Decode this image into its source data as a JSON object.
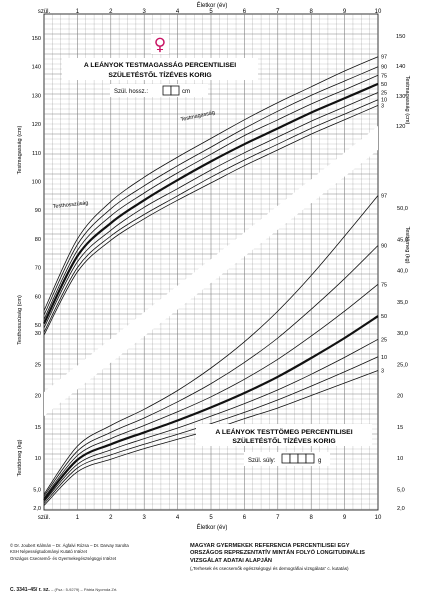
{
  "title_height": "A LEÁNYOK TESTMAGASSÁG PERCENTILISEI",
  "subtitle_height": "SZÜLETÉSTŐL TÍZÉVES KORIG",
  "birth_length_label": "Szül. hossz.:",
  "birth_length_unit": "cm",
  "title_weight": "A LEÁNYOK TESTTÖMEG PERCENTILISEI",
  "subtitle_weight": "SZÜLETÉSTŐL TÍZÉVES KORIG",
  "birth_weight_label": "Szül. súly:",
  "birth_weight_unit": "g",
  "female_symbol": "♀",
  "colors": {
    "symbol": "#c81464",
    "grid": "#777777",
    "curve": "#111111"
  },
  "chart_data": {
    "type": "line",
    "x_axis": {
      "label": "Életkor (év)",
      "range": [
        0,
        10
      ],
      "ticks": [
        "szül.",
        "1",
        "2",
        "3",
        "4",
        "5",
        "6",
        "7",
        "8",
        "9",
        "10"
      ]
    },
    "height_panel": {
      "ylabel_upper": "Testmagasság (cm)",
      "ylabel_lower": "Testhosszúság (cm)",
      "ylabel_right": "Testmagasság (cm)",
      "curve_label_upper": "Testmagasság",
      "curve_label_lower": "Testhosszúság",
      "left_ticks": [
        50,
        60,
        70,
        80,
        90,
        100,
        110,
        120,
        130,
        140,
        150
      ],
      "right_ticks": [
        120,
        130,
        140,
        150
      ],
      "percentiles": [
        "97",
        "90",
        "75",
        "50",
        "25",
        "10",
        "3"
      ],
      "series": [
        {
          "name": "3",
          "bold": false,
          "values": [
            46.5,
            68.5,
            79.5,
            87,
            93.5,
            99.5,
            105.5,
            111,
            116.5,
            121.5,
            126.5
          ]
        },
        {
          "name": "10",
          "bold": false,
          "values": [
            47.5,
            70,
            81,
            88.5,
            95,
            101.5,
            107.5,
            113,
            118.5,
            123.5,
            128.5
          ]
        },
        {
          "name": "25",
          "bold": false,
          "values": [
            49,
            72,
            83,
            91,
            97.5,
            104,
            110,
            115.5,
            121,
            126,
            131
          ]
        },
        {
          "name": "50",
          "bold": true,
          "values": [
            50.5,
            74,
            85.5,
            93.5,
            100.5,
            107,
            113,
            118.5,
            124,
            129,
            134
          ]
        },
        {
          "name": "75",
          "bold": false,
          "values": [
            52,
            76,
            88,
            96,
            103,
            109.5,
            116,
            121.5,
            127,
            132,
            137
          ]
        },
        {
          "name": "90",
          "bold": false,
          "values": [
            53.5,
            78,
            90.5,
            98.5,
            105.5,
            112,
            118.5,
            124.5,
            130,
            135,
            140
          ]
        },
        {
          "name": "97",
          "bold": false,
          "values": [
            55,
            80,
            93,
            101.5,
            108.5,
            115,
            121.5,
            127.5,
            133,
            138.5,
            143.5
          ]
        }
      ]
    },
    "weight_panel": {
      "ylabel_left": "Testtömeg (kg)",
      "ylabel_right": "Testtömeg (kg)",
      "left_ticks": [
        "2,0",
        "5,0",
        "10",
        "15",
        "20",
        "25",
        "30"
      ],
      "right_ticks": [
        "2,0",
        "5,0",
        "10",
        "15",
        "20",
        "25,0",
        "30,0",
        "35,0",
        "40,0",
        "45,0",
        "50,0"
      ],
      "percentiles": [
        "97",
        "90",
        "75",
        "50",
        "25",
        "10",
        "3"
      ],
      "series": [
        {
          "name": "3",
          "bold": false,
          "values": [
            2.4,
            7.8,
            9.8,
            11.5,
            13,
            14.5,
            16.3,
            18,
            20,
            22,
            24
          ]
        },
        {
          "name": "10",
          "bold": false,
          "values": [
            2.7,
            8.4,
            10.5,
            12.2,
            13.8,
            15.5,
            17.3,
            19.3,
            21.5,
            23.8,
            26.2
          ]
        },
        {
          "name": "25",
          "bold": false,
          "values": [
            3,
            9,
            11.3,
            13.1,
            14.8,
            16.7,
            18.7,
            20.9,
            23.4,
            26.1,
            29
          ]
        },
        {
          "name": "50",
          "bold": true,
          "values": [
            3.3,
            9.7,
            12.2,
            14.1,
            16,
            18.1,
            20.4,
            23,
            26,
            29.2,
            32.7
          ]
        },
        {
          "name": "75",
          "bold": false,
          "values": [
            3.6,
            10.4,
            13.1,
            15.2,
            17.4,
            19.8,
            22.6,
            25.8,
            29.5,
            33.5,
            37.8
          ]
        },
        {
          "name": "90",
          "bold": false,
          "values": [
            3.9,
            11.1,
            14.1,
            16.4,
            19,
            21.9,
            25.3,
            29.2,
            33.8,
            38.7,
            44
          ]
        },
        {
          "name": "97",
          "bold": false,
          "values": [
            4.2,
            11.9,
            15.2,
            17.8,
            20.8,
            24.4,
            28.6,
            33.5,
            39.2,
            45.5,
            52
          ]
        }
      ]
    }
  },
  "footer": {
    "authors": [
      "© Dr. Joubert Kálmán – Dr. Ágfalvi Rózsa – Dr. Darvay Sarolta",
      "KSH Népességtudományi Kutató Intézet",
      "Országos Csecsemő- és Gyermekegészségügyi Intézet"
    ],
    "survey": [
      "MAGYAR GYERMEKEK REFERENCIA PERCENTILISEI EGY",
      "ORSZÁGOS REPREZENTATÍV MINTÁN FOLYÓ LONGITUDINÁLIS",
      "VIZSGÁLAT ADATAI ALAPJÁN"
    ],
    "survey_note": "(„Terhesek és csecsemők egészségügyi és demográfiai vizsgálata” c. kutatás)",
    "code": "C. 3341–45/ r. sz.",
    "print_info": "– (Fsz.: 5-9279) – Pátria Nyomda Zrt."
  }
}
